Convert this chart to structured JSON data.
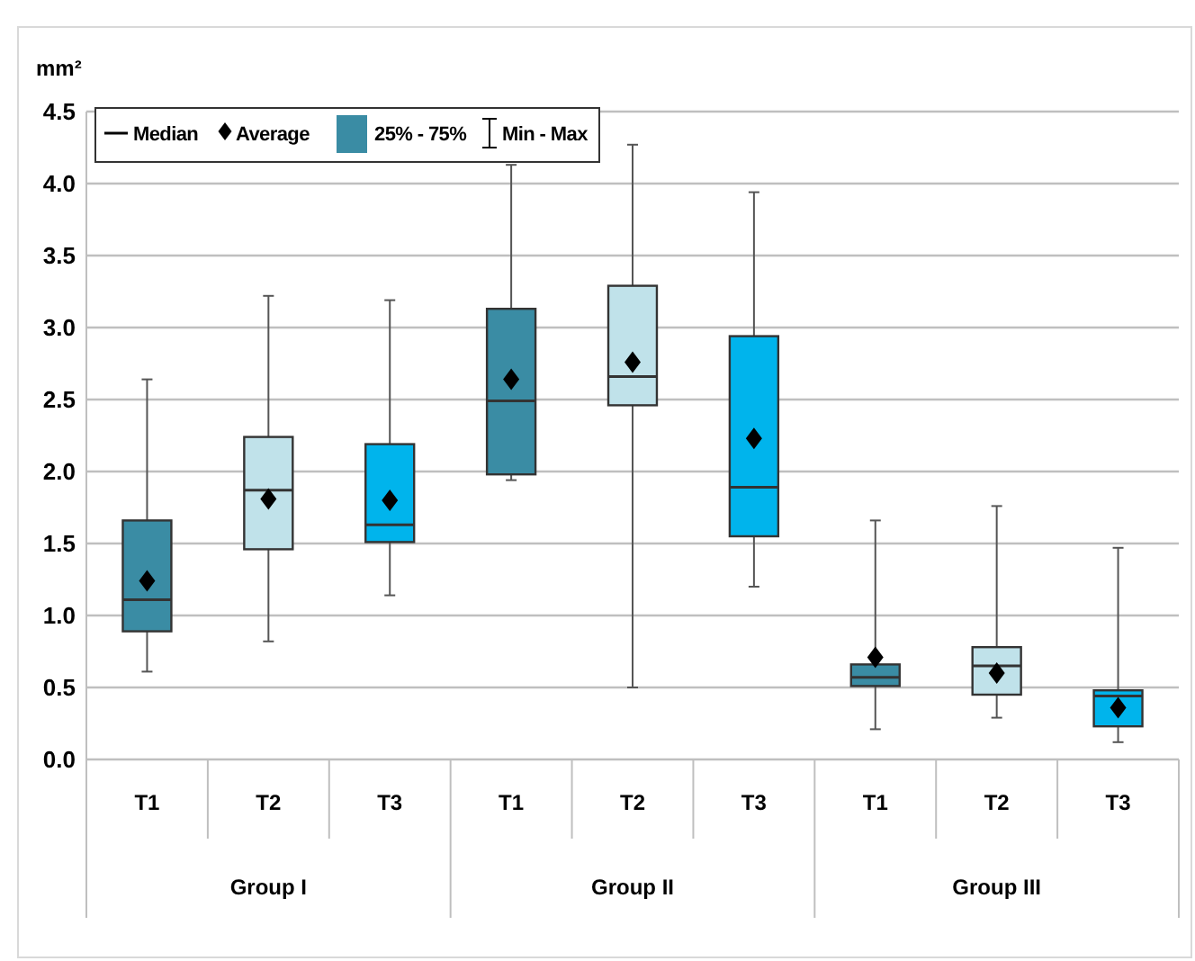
{
  "chart_data": {
    "type": "box",
    "ylabel": "mm²",
    "categories": [
      "T1",
      "T2",
      "T3",
      "T1",
      "T2",
      "T3",
      "T1",
      "T2",
      "T3"
    ],
    "colors": [
      "#3a8ca4",
      "#c0e2ea",
      "#00b4ec",
      "#3a8ca4",
      "#c0e2ea",
      "#00b4ec",
      "#3a8ca4",
      "#c0e2ea",
      "#00b4ec"
    ],
    "boxes": [
      {
        "low": 0.61,
        "q1": 0.89,
        "median": 1.11,
        "q3": 1.66,
        "high": 2.64,
        "mean": 1.24
      },
      {
        "low": 0.82,
        "q1": 1.46,
        "median": 1.87,
        "q3": 2.24,
        "high": 3.22,
        "mean": 1.81
      },
      {
        "low": 1.14,
        "q1": 1.51,
        "median": 1.63,
        "q3": 2.19,
        "high": 3.19,
        "mean": 1.8
      },
      {
        "low": 1.94,
        "q1": 1.98,
        "median": 2.49,
        "q3": 3.13,
        "high": 4.13,
        "mean": 2.64
      },
      {
        "low": 0.5,
        "q1": 2.46,
        "median": 2.66,
        "q3": 3.29,
        "high": 4.27,
        "mean": 2.76
      },
      {
        "low": 1.2,
        "q1": 1.55,
        "median": 1.89,
        "q3": 2.94,
        "high": 3.94,
        "mean": 2.23
      },
      {
        "low": 0.21,
        "q1": 0.51,
        "median": 0.57,
        "q3": 0.66,
        "high": 1.66,
        "mean": 0.71
      },
      {
        "low": 0.29,
        "q1": 0.45,
        "median": 0.65,
        "q3": 0.78,
        "high": 1.76,
        "mean": 0.6
      },
      {
        "low": 0.12,
        "q1": 0.23,
        "median": 0.44,
        "q3": 0.48,
        "high": 1.47,
        "mean": 0.36
      }
    ],
    "ylim": [
      0,
      4.5
    ],
    "yticks": [
      {
        "value": 0,
        "label": "0.0"
      },
      {
        "value": 0.5,
        "label": "0.5"
      },
      {
        "value": 1,
        "label": "1.0"
      },
      {
        "value": 1.5,
        "label": "1.5"
      },
      {
        "value": 2,
        "label": "2.0"
      },
      {
        "value": 2.5,
        "label": "2.5"
      },
      {
        "value": 3,
        "label": "3.0"
      },
      {
        "value": 3.5,
        "label": "3.5"
      },
      {
        "value": 4,
        "label": "4.0"
      },
      {
        "value": 4.5,
        "label": "4.5"
      }
    ],
    "grid": "y",
    "marker": "diamond",
    "annotations": [
      "Median",
      "Average",
      "25% - 75%",
      "Min - Max",
      "Group I",
      "Group II",
      "Group III"
    ]
  }
}
